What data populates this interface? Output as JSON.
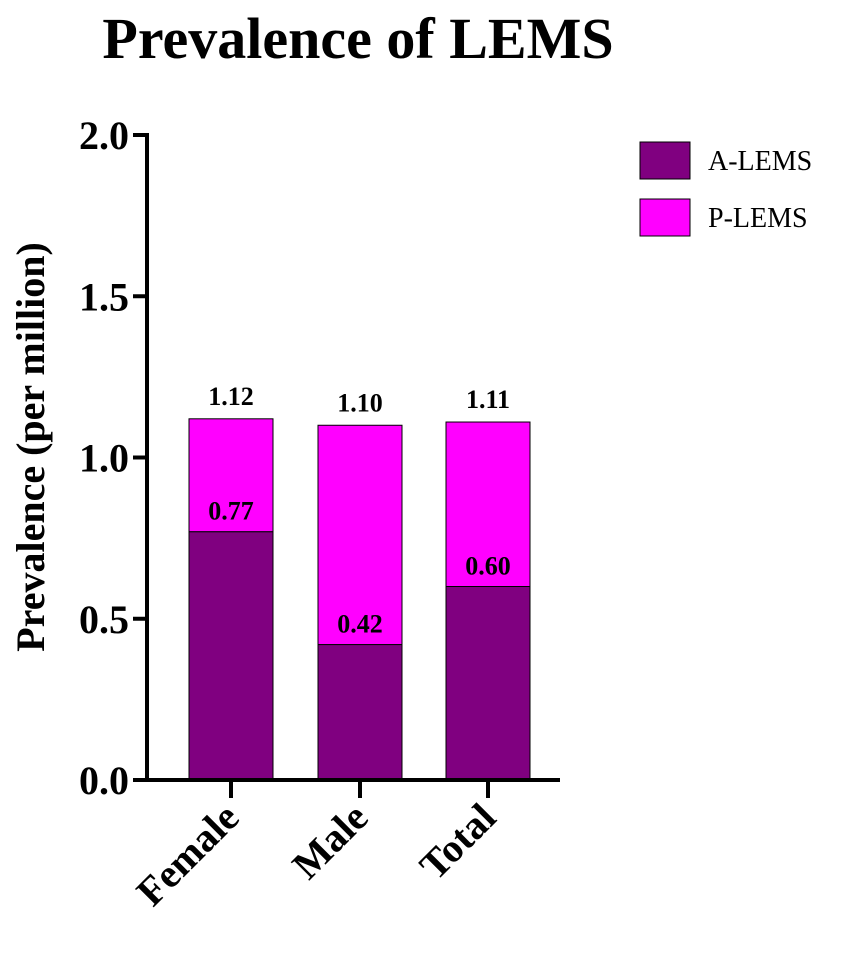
{
  "chart_data": {
    "type": "bar",
    "stacked": true,
    "title": "Prevalence of LEMS",
    "xlabel": "",
    "ylabel": "Prevalence (per million)",
    "ylim": [
      0,
      2.0
    ],
    "yticks": [
      0.0,
      0.5,
      1.0,
      1.5,
      2.0
    ],
    "ytick_labels": [
      "0.0",
      "0.5",
      "1.0",
      "1.5",
      "2.0"
    ],
    "categories": [
      "Female",
      "Male",
      "Total"
    ],
    "series": [
      {
        "name": "A-LEMS",
        "values": [
          0.77,
          0.42,
          0.6
        ],
        "color": "#800080"
      },
      {
        "name": "P-LEMS",
        "values": [
          0.35,
          0.68,
          0.51
        ],
        "color": "#FF00FF"
      }
    ],
    "inner_labels": [
      "0.77",
      "0.42",
      "0.60"
    ],
    "total_labels": [
      "1.12",
      "1.10",
      "1.11"
    ],
    "legend_position": "top-right",
    "grid": false
  }
}
